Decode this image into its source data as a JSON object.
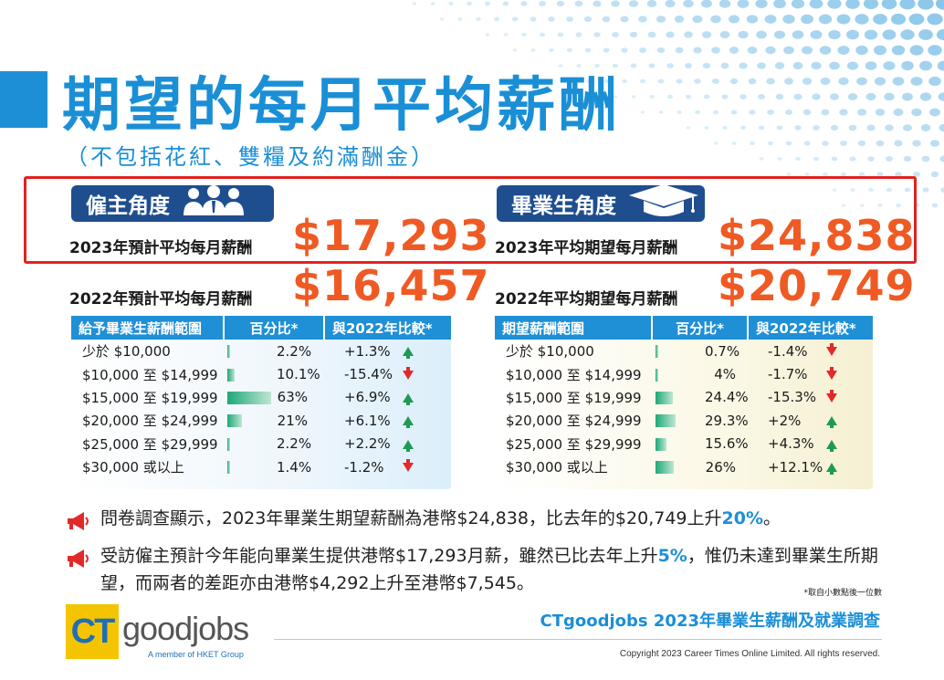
{
  "header": {
    "title": "期望的每月平均薪酬",
    "subtitle": "（不包括花紅、雙糧及約滿酬金）"
  },
  "colors": {
    "accent_blue": "#1f8fd6",
    "navy": "#1f4e8f",
    "orange": "#ef5a24",
    "up_green": "#1e9a54",
    "down_red": "#e12a27",
    "highlight_box": "#e2221f"
  },
  "employer": {
    "badge": "僱主角度",
    "badge_icon": "people-group-icon",
    "row2023_label": "2023年預計平均每月薪酬",
    "row2023_value": "$17,293",
    "row2022_label": "2022年預計平均每月薪酬",
    "row2022_value": "$16,457",
    "table": {
      "headers": [
        "給予畢業生薪酬範圍",
        "百分比*",
        "與2022年比較*"
      ],
      "rows": [
        {
          "range": "少於 $10,000",
          "pct": "2.2%",
          "pct_value": 2.2,
          "change": "+1.3%",
          "trend": "up"
        },
        {
          "range": "$10,000 至 $14,999",
          "pct": "10.1%",
          "pct_value": 10.1,
          "change": "-15.4%",
          "trend": "down"
        },
        {
          "range": "$15,000 至 $19,999",
          "pct": "63%",
          "pct_value": 63,
          "change": "+6.9%",
          "trend": "up"
        },
        {
          "range": "$20,000 至 $24,999",
          "pct": "21%",
          "pct_value": 21,
          "change": "+6.1%",
          "trend": "up"
        },
        {
          "range": "$25,000 至 $29,999",
          "pct": "2.2%",
          "pct_value": 2.2,
          "change": "+2.2%",
          "trend": "up"
        },
        {
          "range": "$30,000 或以上",
          "pct": "1.4%",
          "pct_value": 1.4,
          "change": "-1.2%",
          "trend": "down"
        }
      ]
    }
  },
  "graduate": {
    "badge": "畢業生角度",
    "badge_icon": "graduation-cap-icon",
    "row2023_label": "2023年平均期望每月薪酬",
    "row2023_value": "$24,838",
    "row2022_label": "2022年平均期望每月薪酬",
    "row2022_value": "$20,749",
    "table": {
      "headers": [
        "期望薪酬範圍",
        "百分比*",
        "與2022年比較*"
      ],
      "rows": [
        {
          "range": "少於 $10,000",
          "pct": "0.7%",
          "pct_value": 0.7,
          "change": "-1.4%",
          "trend": "down"
        },
        {
          "range": "$10,000 至 $14,999",
          "pct": "4%",
          "pct_value": 4,
          "change": "-1.7%",
          "trend": "down"
        },
        {
          "range": "$15,000 至 $19,999",
          "pct": "24.4%",
          "pct_value": 24.4,
          "change": "-15.3%",
          "trend": "down"
        },
        {
          "range": "$20,000 至 $24,999",
          "pct": "29.3%",
          "pct_value": 29.3,
          "change": "+2%",
          "trend": "up"
        },
        {
          "range": "$25,000 至 $29,999",
          "pct": "15.6%",
          "pct_value": 15.6,
          "change": "+4.3%",
          "trend": "up"
        },
        {
          "range": "$30,000 或以上",
          "pct": "26%",
          "pct_value": 26,
          "change": "+12.1%",
          "trend": "up"
        }
      ]
    }
  },
  "bullets": {
    "b1_text": "問卷調查顯示，2023年畢業生期望薪酬為港幣$24,838，比去年的$20,749上升",
    "b1_highlight": "20%",
    "b1_end": "。",
    "b2_text": "受訪僱主預計今年能向畢業生提供港幣$17,293月薪，雖然已比去年上升",
    "b2_highlight": "5%",
    "b2_rest": "，惟仍未達到畢業生所期望，而兩者的差距亦由港幣$4,292上升至港幣$7,545。",
    "icon": "megaphone-icon"
  },
  "footnote": "*取自小數點後一位數",
  "footer": {
    "logo_mark": "CT",
    "logo_word": "goodjobs",
    "logo_tagline": "A member of HKET Group",
    "survey_title": "CTgoodjobs 2023年畢業生薪酬及就業調查",
    "copyright": "Copyright 2023 Career Times Online Limited. All rights reserved."
  }
}
